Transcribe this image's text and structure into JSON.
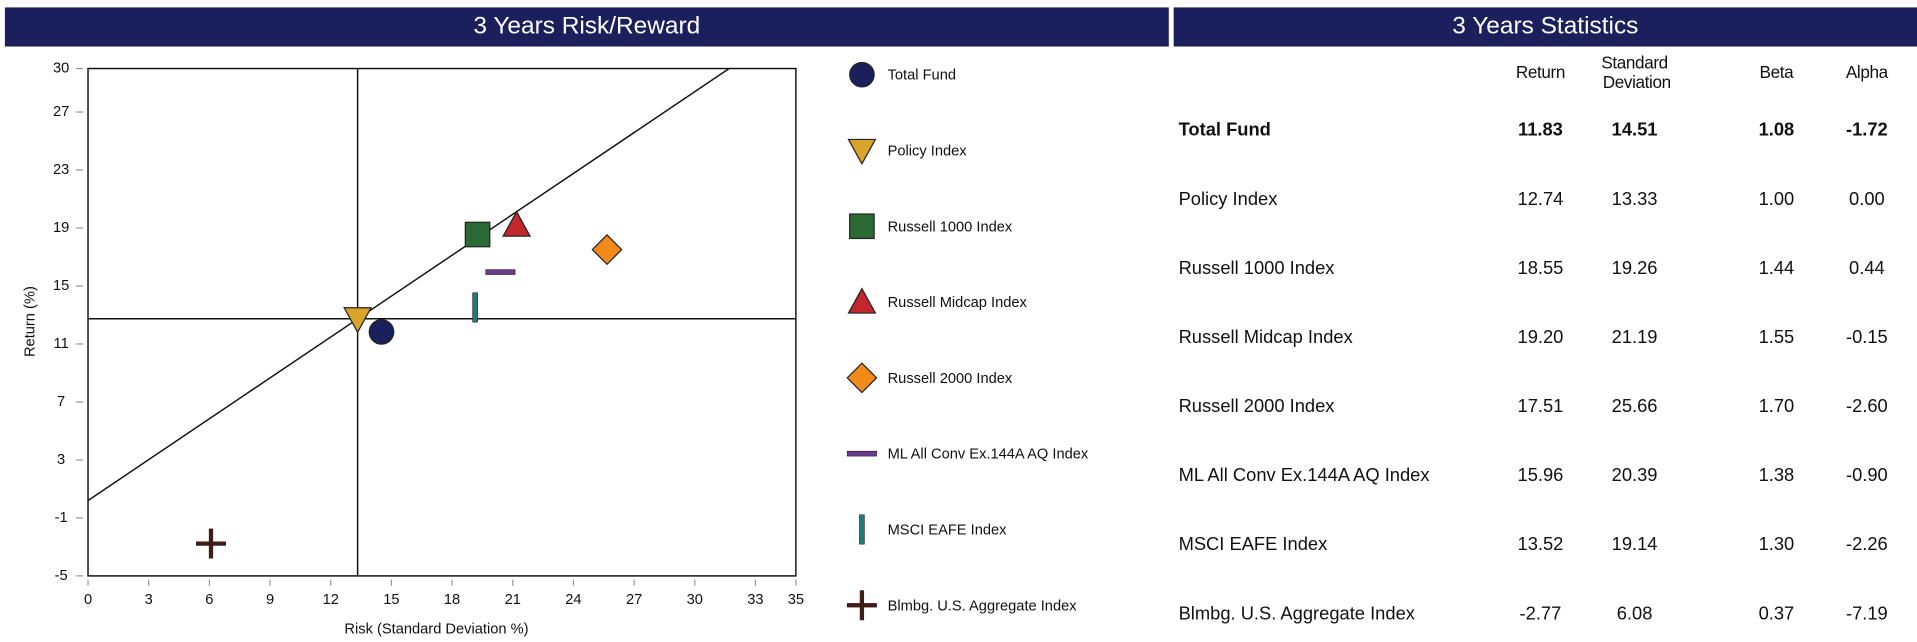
{
  "chart_data": {
    "type": "scatter",
    "title": "3 Years Risk/Reward",
    "x_label": "Risk (Standard Deviation %)",
    "y_label": "Return (%)",
    "xlim": [
      0,
      35
    ],
    "ylim": [
      -5,
      30
    ],
    "xticks": [
      0,
      3,
      6,
      9,
      12,
      15,
      18,
      21,
      24,
      27,
      30,
      33,
      35
    ],
    "yticks": [
      30,
      27,
      23,
      19,
      15,
      11,
      7,
      3,
      -1,
      -5
    ],
    "market_line": {
      "x": [
        0,
        31.7
      ],
      "y": [
        0.2,
        30
      ]
    },
    "crosshair_series": 1,
    "series": [
      {
        "name": "Total Fund",
        "color": "#1b1f5c",
        "marker": "circle",
        "x": [
          14.51
        ],
        "y": [
          11.83
        ]
      },
      {
        "name": "Policy Index",
        "color": "#d9a42a",
        "marker": "triangle-down",
        "x": [
          13.33
        ],
        "y": [
          12.74
        ]
      },
      {
        "name": "Russell 1000 Index",
        "color": "#2c6a35",
        "marker": "square",
        "x": [
          19.26
        ],
        "y": [
          18.55
        ]
      },
      {
        "name": "Russell Midcap Index",
        "color": "#c1272d",
        "marker": "triangle-up",
        "x": [
          21.19
        ],
        "y": [
          19.2
        ]
      },
      {
        "name": "Russell 2000 Index",
        "color": "#f28a1c",
        "marker": "diamond",
        "x": [
          25.66
        ],
        "y": [
          17.51
        ]
      },
      {
        "name": "ML All Conv Ex.144A AQ Index",
        "color": "#6b3a8e",
        "marker": "hbar",
        "x": [
          20.39
        ],
        "y": [
          15.96
        ]
      },
      {
        "name": "MSCI EAFE Index",
        "color": "#1f7b7b",
        "marker": "vbar",
        "x": [
          19.14
        ],
        "y": [
          13.52
        ]
      },
      {
        "name": "Blmbg. U.S. Aggregate Index",
        "color": "#4a1912",
        "marker": "plus",
        "x": [
          6.08
        ],
        "y": [
          -2.77
        ]
      }
    ]
  },
  "statistics": {
    "title": "3 Years Statistics",
    "columns": [
      "Return",
      "Standard Deviation",
      "Beta",
      "Alpha"
    ],
    "rows": [
      {
        "name": "Total Fund",
        "cells": [
          "11.83",
          "14.51",
          "1.08",
          "-1.72"
        ]
      },
      {
        "name": "Policy Index",
        "cells": [
          "12.74",
          "13.33",
          "1.00",
          "0.00"
        ]
      },
      {
        "name": "Russell 1000 Index",
        "cells": [
          "18.55",
          "19.26",
          "1.44",
          "0.44"
        ]
      },
      {
        "name": "Russell Midcap Index",
        "cells": [
          "19.20",
          "21.19",
          "1.55",
          "-0.15"
        ]
      },
      {
        "name": "Russell 2000 Index",
        "cells": [
          "17.51",
          "25.66",
          "1.70",
          "-2.60"
        ]
      },
      {
        "name": "ML All Conv Ex.144A AQ Index",
        "cells": [
          "15.96",
          "20.39",
          "1.38",
          "-0.90"
        ]
      },
      {
        "name": "MSCI EAFE Index",
        "cells": [
          "13.52",
          "19.14",
          "1.30",
          "-2.26"
        ]
      },
      {
        "name": "Blmbg. U.S. Aggregate Index",
        "cells": [
          "-2.77",
          "6.08",
          "0.37",
          "-7.19"
        ]
      }
    ]
  }
}
